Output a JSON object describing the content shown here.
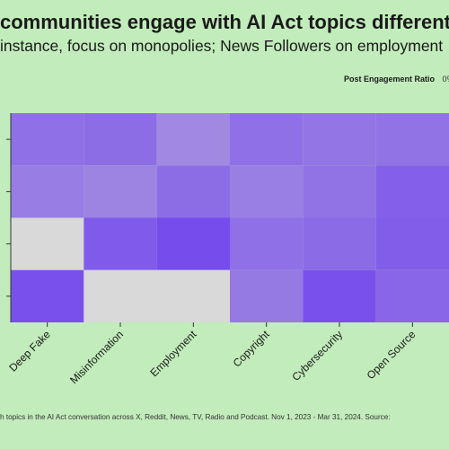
{
  "title": "communities engage with AI Act topics differently",
  "subtitle": "instance, focus on monopolies; News Followers on employment",
  "legend": {
    "title": "Post Engagement Ratio",
    "min_label": "0%"
  },
  "footnote": "h topics in the AI Act conversation across X, Reddit, News, TV, Radio and Podcast. Nov 1, 2023 - Mar 31, 2024. Source:",
  "chart_data": {
    "type": "heatmap",
    "title": "communities engage with AI Act topics differently",
    "subtitle": "instance, focus on monopolies; News Followers on employment",
    "x_categories": [
      "Deep Fake",
      "Misinformation",
      "Employment",
      "Copyright",
      "Cybersecurity",
      "Open Source"
    ],
    "y_categories": [
      "",
      "",
      "",
      ""
    ],
    "values": [
      [
        0.55,
        0.58,
        0.3,
        0.55,
        0.5,
        0.52
      ],
      [
        0.42,
        0.35,
        0.58,
        0.4,
        0.52,
        0.72
      ],
      [
        null,
        0.78,
        0.92,
        0.55,
        0.6,
        0.75
      ],
      [
        0.88,
        null,
        null,
        0.45,
        0.88,
        0.65
      ]
    ],
    "color_scale": {
      "low": "#b3a6dc",
      "high": "#7244ee",
      "missing": "#d9d9d9"
    },
    "legend_title": "Post Engagement Ratio",
    "legend_min": "0%"
  }
}
